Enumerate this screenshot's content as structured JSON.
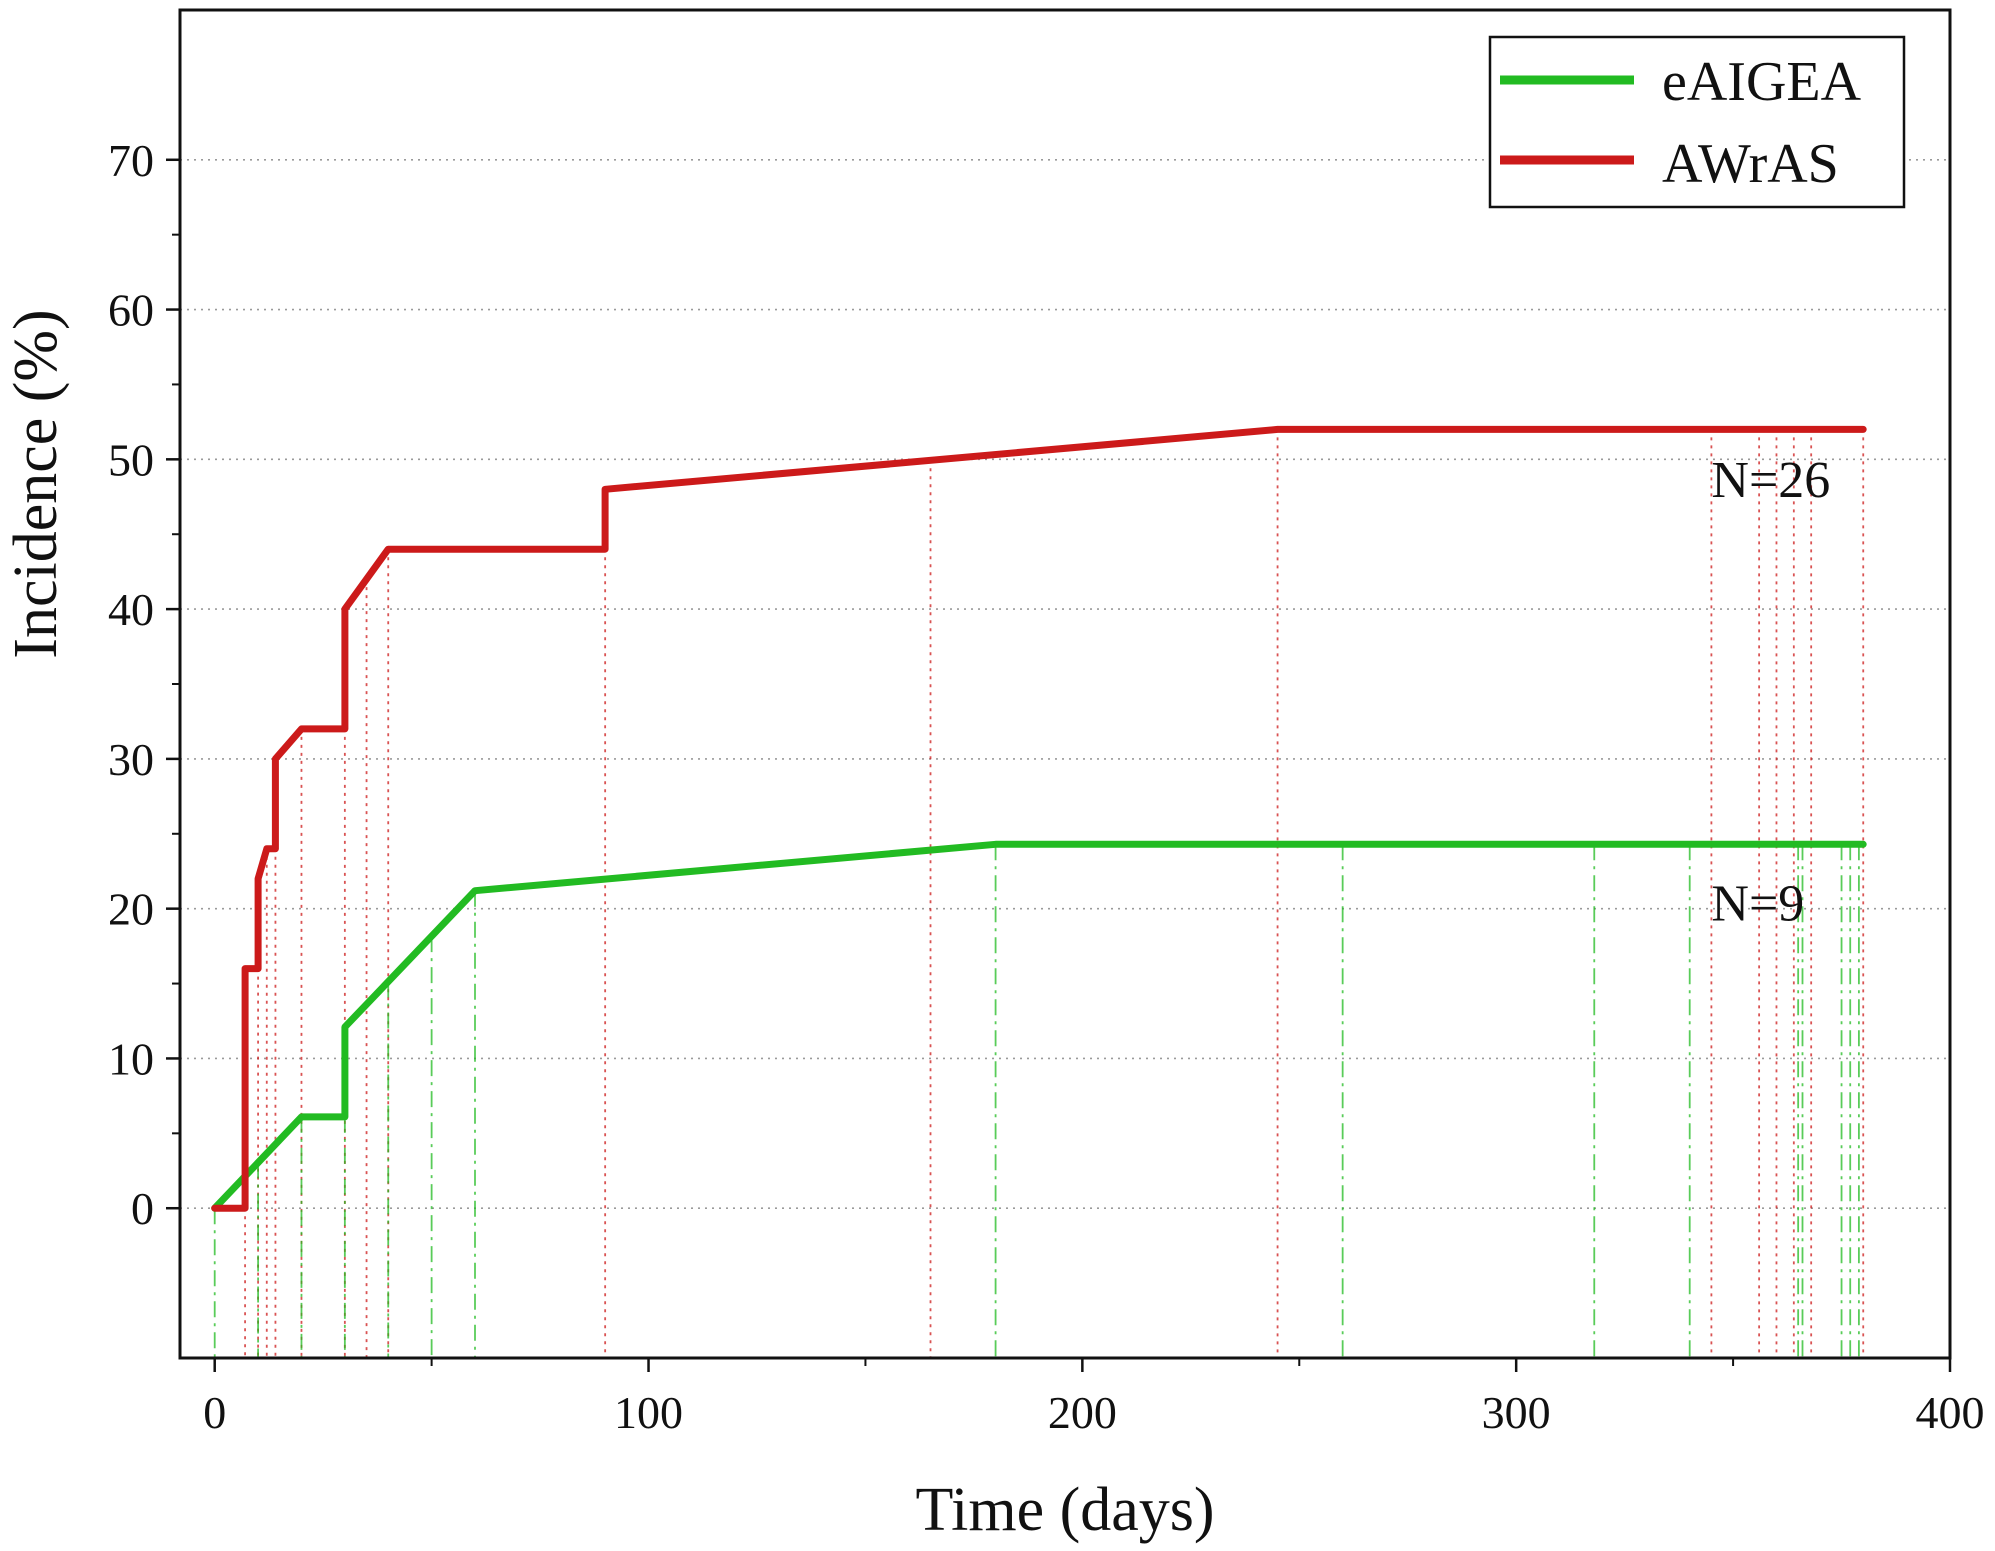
{
  "chart_data": {
    "type": "line",
    "title": "",
    "xlabel": "Time (days)",
    "ylabel": "Incidence (%)",
    "xlim": [
      -8,
      400
    ],
    "ylim": [
      -10,
      80
    ],
    "xticks": [
      0,
      100,
      200,
      300,
      400
    ],
    "yticks": [
      0,
      10,
      20,
      30,
      40,
      50,
      60,
      70
    ],
    "grid": true,
    "legend_position": "top-right",
    "colors": {
      "eAIGEA": "#22bb22",
      "AWrAS": "#cc1a1a"
    },
    "series": [
      {
        "name": "AWrAS",
        "points": [
          [
            0,
            0
          ],
          [
            7,
            0
          ],
          [
            7,
            16
          ],
          [
            10,
            16
          ],
          [
            10,
            22
          ],
          [
            12,
            24
          ],
          [
            14,
            24
          ],
          [
            14,
            30
          ],
          [
            20,
            32
          ],
          [
            30,
            32
          ],
          [
            30,
            40
          ],
          [
            40,
            44
          ],
          [
            90,
            44
          ],
          [
            90,
            48
          ],
          [
            245,
            52
          ],
          [
            380,
            52
          ]
        ],
        "censor_x": [
          7,
          10,
          12,
          14,
          20,
          30,
          35,
          40,
          90,
          165,
          245,
          345,
          356,
          360,
          364,
          368,
          380
        ]
      },
      {
        "name": "eAIGEA",
        "points": [
          [
            0,
            0
          ],
          [
            20,
            6.1
          ],
          [
            30,
            6.1
          ],
          [
            30,
            12.1
          ],
          [
            60,
            21.2
          ],
          [
            180,
            24.3
          ],
          [
            380,
            24.3
          ]
        ],
        "censor_x": [
          0,
          10,
          20,
          30,
          40,
          50,
          60,
          180,
          260,
          318,
          340,
          365,
          366,
          375,
          377,
          379
        ]
      }
    ],
    "annotations": [
      {
        "text": "N=26",
        "x": 345,
        "y": 47.5
      },
      {
        "text": "N=9",
        "x": 345,
        "y": 19.2
      }
    ]
  }
}
